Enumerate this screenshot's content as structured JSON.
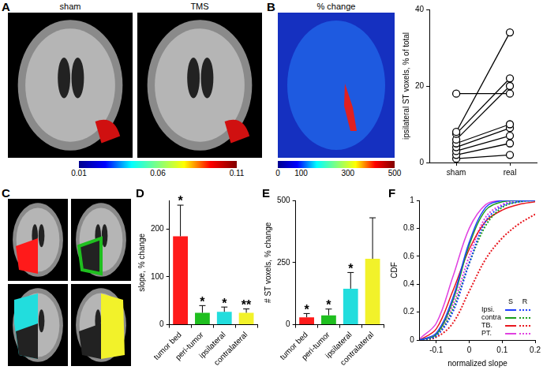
{
  "panel_A": {
    "panel": "A",
    "image_titles": [
      "sham",
      "TMS"
    ],
    "colorbar": {
      "lim": [
        0.01,
        0.11
      ],
      "ticks": [
        0.01,
        0.06,
        0.11
      ]
    }
  },
  "panel_B_image": {
    "panel": "B",
    "title": "% change",
    "colorbar": {
      "lim": [
        0,
        500
      ],
      "ticks": [
        0,
        100,
        300,
        500
      ]
    }
  },
  "panel_C": {
    "panel": "C"
  },
  "chart_data": [
    {
      "type": "line",
      "ylabel": "ipsilateral ST voxels, % of total",
      "categories": [
        "sham",
        "real"
      ],
      "ylim": [
        0,
        40
      ],
      "yticks": [
        0,
        20,
        40
      ],
      "grid": false,
      "color": "#000000",
      "marker": "open_circle",
      "series": [
        {
          "values": [
            18,
            18
          ]
        },
        {
          "values": [
            8,
            34
          ]
        },
        {
          "values": [
            7.5,
            22
          ]
        },
        {
          "values": [
            6,
            20
          ]
        },
        {
          "values": [
            5,
            10
          ]
        },
        {
          "values": [
            4,
            9
          ]
        },
        {
          "values": [
            3,
            7
          ]
        },
        {
          "values": [
            2,
            5
          ]
        },
        {
          "values": [
            1,
            2
          ]
        }
      ]
    },
    {
      "type": "bar",
      "panel": "D",
      "ylabel": "slope, % change",
      "categories": [
        "tumor bed",
        "peri-tumor",
        "ipsilateral",
        "contralateral"
      ],
      "values": [
        185,
        25,
        27,
        25
      ],
      "errors": [
        65,
        15,
        10,
        8
      ],
      "annotations": [
        "*",
        "*",
        "*",
        "**"
      ],
      "colors": [
        "#ff1a1a",
        "#1fbf1f",
        "#22dddd",
        "#f2f22a"
      ],
      "ylim": [
        0,
        260
      ],
      "yticks": [
        0,
        100,
        200
      ],
      "grid": false
    },
    {
      "type": "bar",
      "panel": "E",
      "ylabel": "# ST voxels, % change",
      "categories": [
        "tumor bed",
        "peri-tumor",
        "ipsilateral",
        "contralateral"
      ],
      "values": [
        30,
        38,
        145,
        265
      ],
      "errors": [
        15,
        25,
        65,
        165
      ],
      "annotations": [
        "*",
        "*",
        "*",
        null
      ],
      "colors": [
        "#ff1a1a",
        "#1fbf1f",
        "#22dddd",
        "#f2f22a"
      ],
      "ylim": [
        0,
        500
      ],
      "yticks": [
        0,
        250,
        500
      ],
      "grid": false
    },
    {
      "type": "line",
      "panel": "F",
      "xlabel": "normalized slope",
      "ylabel": "CDF",
      "x": [
        -0.15,
        -0.1,
        -0.05,
        0,
        0.05,
        0.1,
        0.15,
        0.2
      ],
      "xlim": [
        -0.15,
        0.2
      ],
      "xticks": [
        -0.1,
        0,
        0.1,
        0.2
      ],
      "ylim": [
        0,
        1
      ],
      "yticks": [
        0,
        0.2,
        0.4,
        0.6,
        0.8,
        1
      ],
      "grid": false,
      "legend": "lower right",
      "legend_columns": [
        "S",
        "R"
      ],
      "series": [
        {
          "name": "Ipsi.",
          "group": "S",
          "color": "#1f3fff",
          "line_style": "solid",
          "values": [
            0,
            0.05,
            0.3,
            0.7,
            0.95,
            1,
            1,
            1
          ]
        },
        {
          "name": "Ipsi.",
          "group": "R",
          "color": "#1f3fff",
          "line_style": "dotted",
          "values": [
            0,
            0.03,
            0.2,
            0.55,
            0.85,
            0.96,
            0.99,
            1
          ]
        },
        {
          "name": "contra",
          "group": "S",
          "color": "#1a9e1a",
          "line_style": "solid",
          "values": [
            0,
            0.04,
            0.28,
            0.68,
            0.93,
            0.99,
            1,
            1
          ]
        },
        {
          "name": "contra",
          "group": "R",
          "color": "#1a9e1a",
          "line_style": "dotted",
          "values": [
            0,
            0.03,
            0.22,
            0.55,
            0.82,
            0.95,
            0.99,
            1
          ]
        },
        {
          "name": "TB.",
          "group": "S",
          "color": "#e8171e",
          "line_style": "solid",
          "values": [
            0,
            0.08,
            0.35,
            0.65,
            0.85,
            0.93,
            0.97,
            0.99
          ]
        },
        {
          "name": "TB.",
          "group": "R",
          "color": "#e8171e",
          "line_style": "dotted",
          "values": [
            0,
            0.02,
            0.12,
            0.35,
            0.58,
            0.73,
            0.83,
            0.9
          ]
        },
        {
          "name": "PT.",
          "group": "S",
          "color": "#e040e0",
          "line_style": "solid",
          "values": [
            0.01,
            0.12,
            0.45,
            0.8,
            0.97,
            1,
            1,
            1
          ]
        },
        {
          "name": "PT.",
          "group": "R",
          "color": "#e040e0",
          "line_style": "dotted",
          "values": [
            0,
            0.04,
            0.25,
            0.6,
            0.88,
            0.97,
            1,
            1
          ]
        }
      ]
    }
  ]
}
